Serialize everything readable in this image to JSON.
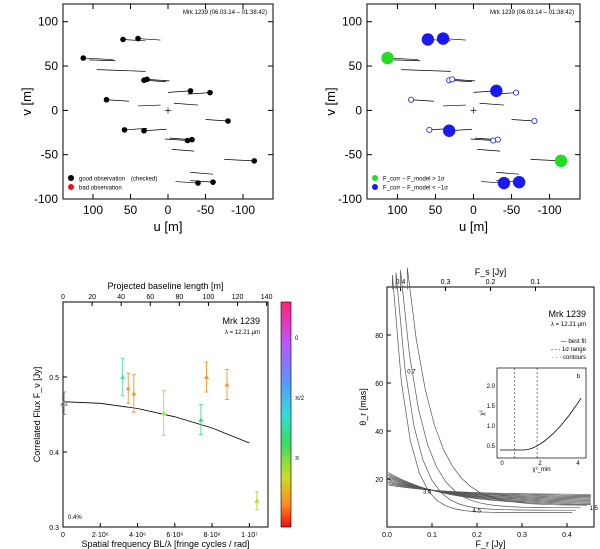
{
  "chart_data": [
    {
      "type": "scatter",
      "name": "uv-coverage-left",
      "header": "Mrk 1239 (06.03.14 – 01:38:42)",
      "xlabel": "u [m]",
      "ylabel": "v [m]",
      "xlim": [
        140,
        -140
      ],
      "ylim": [
        -100,
        120
      ],
      "xticks": [
        100,
        50,
        0,
        -50,
        -100
      ],
      "yticks": [
        -100,
        -50,
        0,
        50,
        100
      ],
      "legend": [
        {
          "label": "good observation",
          "note": "(checked)",
          "color": "#000000"
        },
        {
          "label": "bad observation",
          "color": "#e8121b"
        }
      ],
      "points": [
        {
          "u": 60,
          "v": 80,
          "g": "good"
        },
        {
          "u": 40,
          "v": 81,
          "g": "good"
        },
        {
          "u": 113,
          "v": 59,
          "g": "good"
        },
        {
          "u": 32,
          "v": 34,
          "g": "good"
        },
        {
          "u": 28,
          "v": 35,
          "g": "good"
        },
        {
          "u": -30,
          "v": 22,
          "g": "good"
        },
        {
          "u": -56,
          "v": 20,
          "g": "good"
        },
        {
          "u": 82,
          "v": 12,
          "g": "good"
        },
        {
          "u": -80,
          "v": -12,
          "g": "good"
        },
        {
          "u": 58,
          "v": -22,
          "g": "good"
        },
        {
          "u": 32,
          "v": -23,
          "g": "good"
        },
        {
          "u": -26,
          "v": -34,
          "g": "good"
        },
        {
          "u": -32,
          "v": -33,
          "g": "good"
        },
        {
          "u": -115,
          "v": -57,
          "g": "good"
        },
        {
          "u": -40,
          "v": -82,
          "g": "good"
        },
        {
          "u": -60,
          "v": -81,
          "g": "good"
        }
      ]
    },
    {
      "type": "scatter",
      "name": "uv-coverage-right",
      "header": "Mrk 1239 (06.03.14 – 01:38:42)",
      "xlabel": "u [m]",
      "ylabel": "v [m]",
      "xlim": [
        140,
        -140
      ],
      "ylim": [
        -100,
        120
      ],
      "xticks": [
        100,
        50,
        0,
        -50,
        -100
      ],
      "yticks": [
        -100,
        -50,
        0,
        50,
        100
      ],
      "legend": [
        {
          "label": "F_corr − F_model > 1σ",
          "color": "#22dd22"
        },
        {
          "label": "F_corr − F_model < −1σ",
          "color": "#1a1aee"
        }
      ],
      "points": [
        {
          "u": 60,
          "v": 80,
          "c": "blue",
          "s": 3
        },
        {
          "u": 40,
          "v": 81,
          "c": "blue",
          "s": 3
        },
        {
          "u": 113,
          "v": 59,
          "c": "green",
          "s": 3
        },
        {
          "u": 32,
          "v": 34,
          "c": "open",
          "s": 1
        },
        {
          "u": 28,
          "v": 35,
          "c": "open",
          "s": 1
        },
        {
          "u": -30,
          "v": 22,
          "c": "blue",
          "s": 3
        },
        {
          "u": -56,
          "v": 20,
          "c": "open",
          "s": 1
        },
        {
          "u": 82,
          "v": 12,
          "c": "open",
          "s": 1
        },
        {
          "u": -80,
          "v": -12,
          "c": "open",
          "s": 1
        },
        {
          "u": 58,
          "v": -22,
          "c": "open",
          "s": 1
        },
        {
          "u": 32,
          "v": -23,
          "c": "blue",
          "s": 3
        },
        {
          "u": -26,
          "v": -34,
          "c": "open",
          "s": 1
        },
        {
          "u": -32,
          "v": -33,
          "c": "open",
          "s": 1
        },
        {
          "u": -115,
          "v": -57,
          "c": "green",
          "s": 3
        },
        {
          "u": -40,
          "v": -82,
          "c": "blue",
          "s": 3
        },
        {
          "u": -60,
          "v": -81,
          "c": "blue",
          "s": 3
        }
      ]
    },
    {
      "type": "scatter",
      "name": "correlated-flux",
      "title": "Mrk 1239",
      "subtitle": "λ = 12.21 μm",
      "xlabel": "Spatial frequency BL/λ [fringe cycles / rad]",
      "ylabel": "Correlated Flux F_ν [Jy]",
      "top_xlabel": "Projected baseline length [m]",
      "xlim": [
        0,
        11000000
      ],
      "ylim": [
        0.3,
        0.6
      ],
      "xtick_labels": [
        "0",
        "2·10⁶",
        "4·10⁶",
        "6·10⁶",
        "8·10⁶",
        "1·10⁷"
      ],
      "xticks": [
        0,
        2000000,
        4000000,
        6000000,
        8000000,
        10000000
      ],
      "yticks": [
        0.3,
        0.4,
        0.5
      ],
      "ytick_labels": [
        "0.3",
        "0.4",
        "0.5"
      ],
      "top_xticks": [
        0,
        20,
        40,
        60,
        80,
        100,
        120,
        140
      ],
      "colorbar_labels": [
        "0",
        "π/2",
        "π"
      ],
      "corner_label": "0.4%",
      "points": [
        {
          "x": 60000,
          "y": 0.465,
          "err": 0.015,
          "color": "#888888",
          "marker": "triangle"
        },
        {
          "x": 3200000,
          "y": 0.5,
          "err": 0.025,
          "color": "#55ddaa"
        },
        {
          "x": 3500000,
          "y": 0.485,
          "err": 0.02,
          "color": "#ee9933"
        },
        {
          "x": 3800000,
          "y": 0.478,
          "err": 0.025,
          "color": "#ee9933"
        },
        {
          "x": 5400000,
          "y": 0.452,
          "err": 0.03,
          "color": "#88ee55"
        },
        {
          "x": 7400000,
          "y": 0.443,
          "err": 0.02,
          "color": "#44dd77"
        },
        {
          "x": 7700000,
          "y": 0.5,
          "err": 0.02,
          "color": "#ee9933"
        },
        {
          "x": 8800000,
          "y": 0.49,
          "err": 0.02,
          "color": "#ee9933"
        },
        {
          "x": 10400000,
          "y": 0.335,
          "err": 0.012,
          "color": "#aadd33"
        }
      ],
      "model": {
        "x": [
          0,
          2000000,
          4000000,
          6000000,
          8000000,
          10000000
        ],
        "y": [
          0.467,
          0.465,
          0.458,
          0.447,
          0.432,
          0.412
        ]
      }
    },
    {
      "type": "line",
      "name": "size-vs-flux-contours",
      "title": "Mrk 1239",
      "subtitle": "λ = 12.21 μm",
      "xlabel": "F_r [Jy]",
      "ylabel": "θ_r [mas]",
      "top_xlabel": "F_s [Jy]",
      "xlim": [
        0,
        0.46
      ],
      "ylim": [
        0,
        100
      ],
      "xticks": [
        0,
        0.1,
        0.2,
        0.3,
        0.4
      ],
      "xtick_labels": [
        "0.0",
        "0.1",
        "0.2",
        "0.3",
        "0.4"
      ],
      "yticks": [
        20,
        40,
        60,
        80
      ],
      "ytick_labels": [
        "20",
        "40",
        "60",
        "80"
      ],
      "top_tick_labels": [
        "0.4",
        "0.3",
        "0.2",
        "0.1"
      ],
      "contour_labels": [
        "0.7",
        "3.6",
        "4.5",
        "1.5"
      ],
      "legend_lines": [
        "— best fit",
        "- - - 1σ range",
        "· · · contours"
      ],
      "inset": {
        "xlabel": "χ²_min",
        "ylabel": "χ²",
        "xtick_labels": [
          "0",
          "2",
          "4"
        ],
        "ytick_labels": [
          "0.5",
          "1.0",
          "1.5",
          "2.0"
        ],
        "corner_label": "b"
      }
    }
  ]
}
